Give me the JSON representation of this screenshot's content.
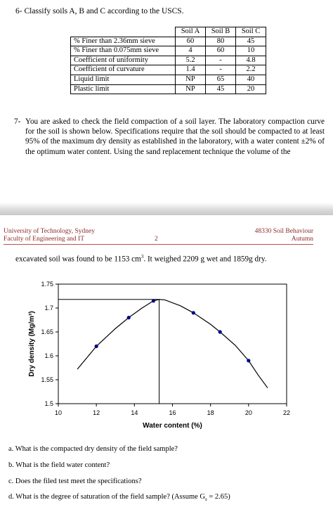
{
  "q6": {
    "title": "6-  Classify soils A, B and C according to the USCS."
  },
  "soil_table": {
    "headers": [
      "Soil A",
      "Soil B",
      "Soil C"
    ],
    "rows": [
      {
        "label": "% Finer than 2.36mm sieve",
        "values": [
          "60",
          "80",
          "45"
        ]
      },
      {
        "label": "% Finer than 0.075mm sieve",
        "values": [
          "4",
          "60",
          "10"
        ]
      },
      {
        "label": "Coefficient of uniformity",
        "values": [
          "5.2",
          "-",
          "4.8"
        ]
      },
      {
        "label": "Coefficient of curvature",
        "values": [
          "1.4",
          "-",
          "2.2"
        ]
      },
      {
        "label": "Liquid limit",
        "values": [
          "NP",
          "65",
          "40"
        ]
      },
      {
        "label": "Plastic limit",
        "values": [
          "NP",
          "45",
          "20"
        ]
      }
    ]
  },
  "q7": {
    "number": "7-",
    "text": "You are asked to check the field compaction of a soil layer. The laboratory compaction curve for the soil is shown below. Specifications require that the soil should be compacted to at least 95% of the maximum dry density as established in the laboratory, with a water content ±2% of the optimum water content. Using the sand replacement technique the volume of the"
  },
  "header": {
    "university": "University of Technology, Sydney",
    "faculty": "Faculty of Engineering and IT",
    "page": "2",
    "course": "48330 Soil Behaviour",
    "semester": "Autumn"
  },
  "excavation": {
    "text_before": "excavated soil was found to be 1153 cm",
    "superscript": "3",
    "text_after": ". It weighed 2209 g wet and 1859g dry."
  },
  "chart_data": {
    "type": "line",
    "xlabel": "Water content (%)",
    "ylabel": "Dry density (Mg/m³)",
    "xlim": [
      10,
      22
    ],
    "ylim": [
      1.5,
      1.75
    ],
    "x_ticks": [
      10,
      12,
      14,
      16,
      18,
      20,
      22
    ],
    "y_ticks": [
      1.5,
      1.55,
      1.6,
      1.65,
      1.7,
      1.75
    ],
    "points": [
      {
        "x": 12.0,
        "y": 1.62
      },
      {
        "x": 13.7,
        "y": 1.68
      },
      {
        "x": 15.0,
        "y": 1.715
      },
      {
        "x": 17.1,
        "y": 1.69
      },
      {
        "x": 18.5,
        "y": 1.65
      },
      {
        "x": 20.0,
        "y": 1.59
      }
    ],
    "curve": [
      {
        "x": 11.0,
        "y": 1.572
      },
      {
        "x": 12.0,
        "y": 1.62
      },
      {
        "x": 13.0,
        "y": 1.657
      },
      {
        "x": 13.7,
        "y": 1.68
      },
      {
        "x": 14.4,
        "y": 1.7
      },
      {
        "x": 15.0,
        "y": 1.715
      },
      {
        "x": 15.3,
        "y": 1.718
      },
      {
        "x": 15.6,
        "y": 1.717
      },
      {
        "x": 16.4,
        "y": 1.705
      },
      {
        "x": 17.1,
        "y": 1.69
      },
      {
        "x": 18.0,
        "y": 1.666
      },
      {
        "x": 18.5,
        "y": 1.65
      },
      {
        "x": 19.3,
        "y": 1.622
      },
      {
        "x": 20.0,
        "y": 1.59
      },
      {
        "x": 20.5,
        "y": 1.56
      },
      {
        "x": 21.0,
        "y": 1.533
      }
    ],
    "reference_lines": {
      "x": 15.3,
      "y": 1.718
    },
    "grid": false,
    "marker_color": "#00008b",
    "line_color": "#000000"
  },
  "questions": [
    "a. What is the compacted dry density of the field sample?",
    "b. What is the field water content?",
    "c. Does the filed test meet the specifications?",
    "d. What is the degree of saturation of the field sample? (Assume G"
  ],
  "question_d_tail": {
    "subscript": "s",
    "text": " = 2.65)"
  }
}
